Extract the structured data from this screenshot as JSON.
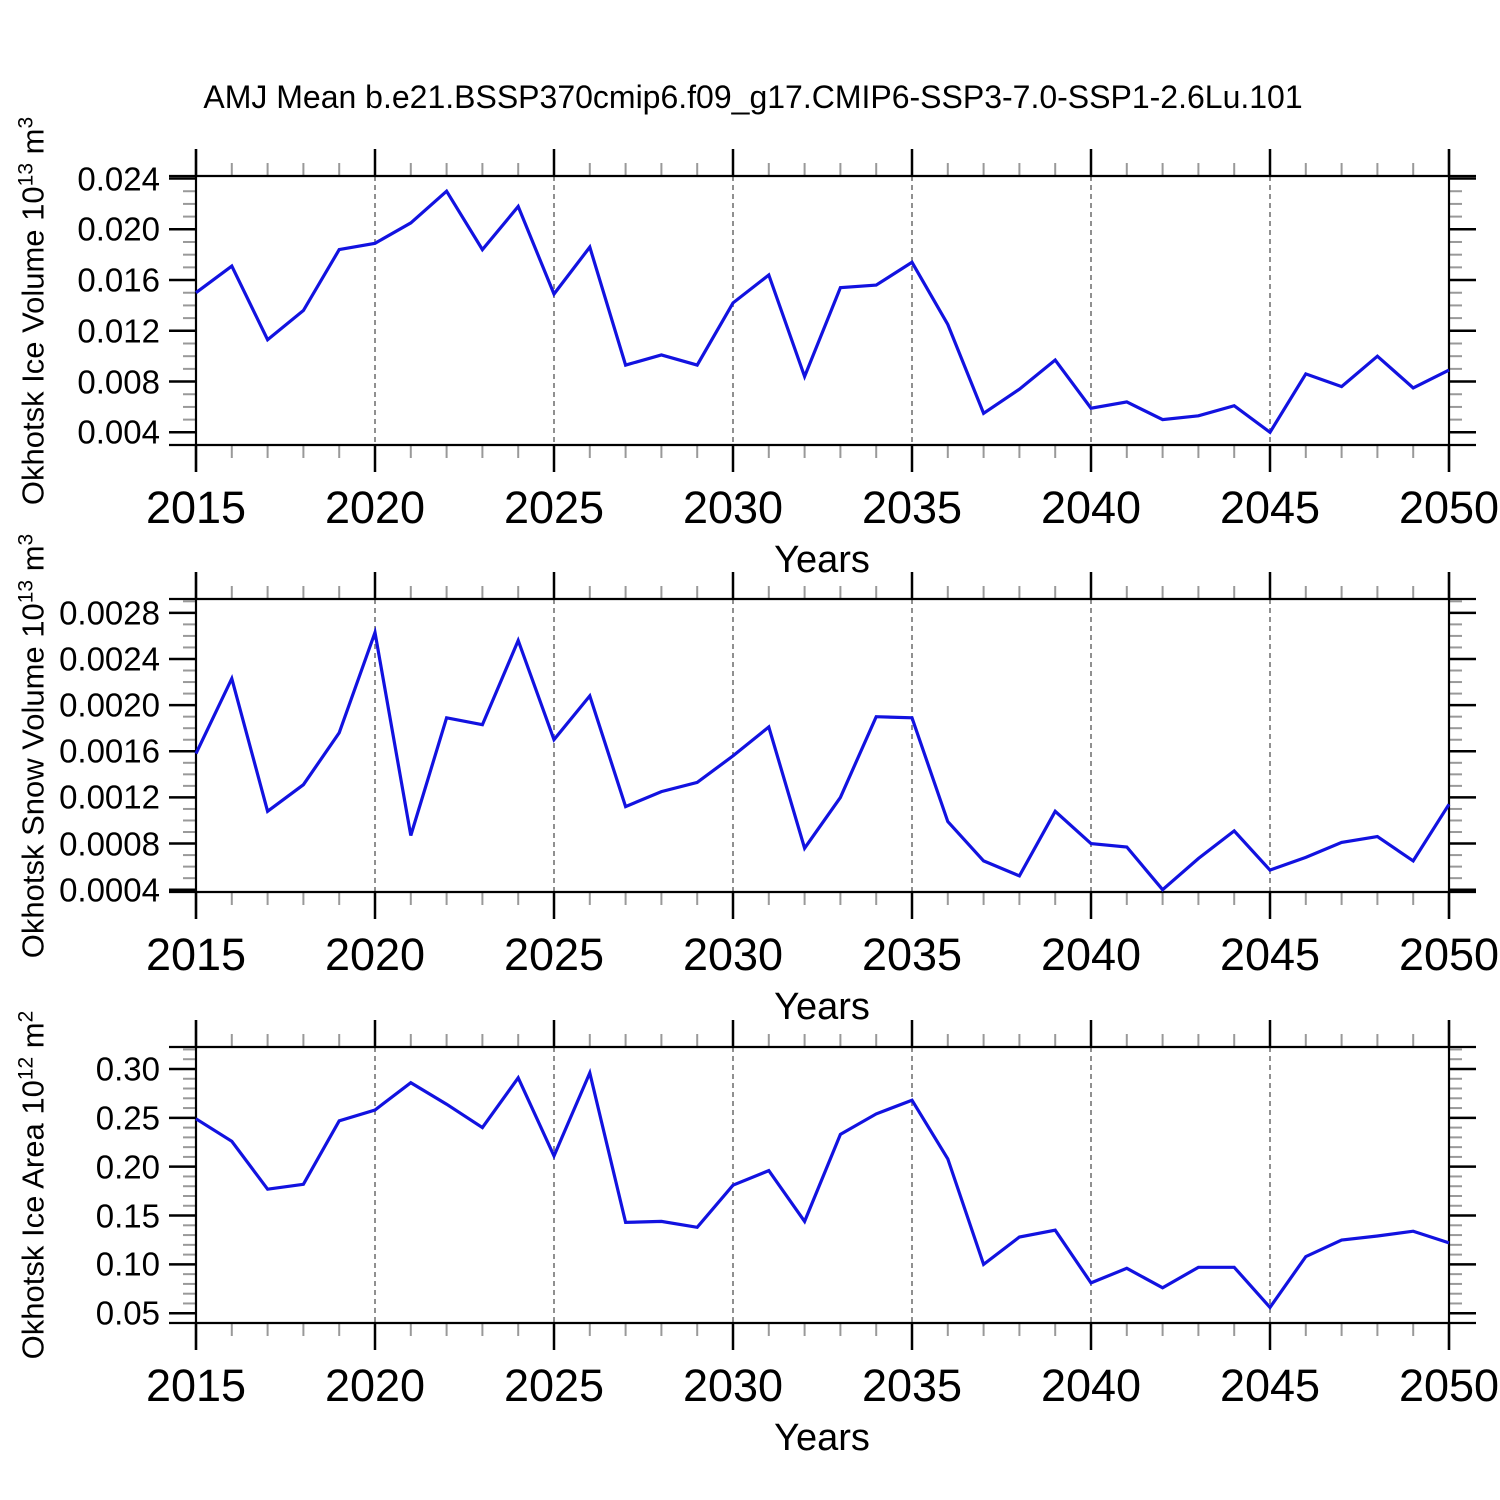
{
  "title": "AMJ Mean b.e21.BSSP370cmip6.f09_g17.CMIP6-SSP3-7.0-SSP1-2.6Lu.101",
  "colors": {
    "line": "#1212e0",
    "axis": "#000000",
    "minor_tick": "#999999",
    "grid": "#848484",
    "text": "#000000",
    "background": "#ffffff"
  },
  "chart_data": [
    {
      "type": "line",
      "name": "okhotsk-ice-volume",
      "ylabel": "Okhotsk Ice Volume 10^13 m^3",
      "ylabel_parts": [
        {
          "text": "Okhotsk Ice Volume 10"
        },
        {
          "sup": "13"
        },
        {
          "text": " m"
        },
        {
          "sup": "3"
        }
      ],
      "xlabel": "Years",
      "xlim": [
        2015,
        2050
      ],
      "ylim": [
        0.003,
        0.0242
      ],
      "x_major_ticks": [
        2015,
        2020,
        2025,
        2030,
        2035,
        2040,
        2045,
        2050
      ],
      "x_tick_labels": [
        "2015",
        "2020",
        "2025",
        "2030",
        "2035",
        "2040",
        "2045",
        "2050"
      ],
      "x_grid_years": [
        2020,
        2025,
        2030,
        2035,
        2040,
        2045
      ],
      "y_minor_step": 0.001,
      "yticks": [
        {
          "value": 0.004,
          "label": "0.004"
        },
        {
          "value": 0.008,
          "label": "0.008"
        },
        {
          "value": 0.012,
          "label": "0.012"
        },
        {
          "value": 0.016,
          "label": "0.016"
        },
        {
          "value": 0.02,
          "label": "0.020"
        },
        {
          "value": 0.024,
          "label": "0.024"
        }
      ],
      "x": [
        2015,
        2016,
        2017,
        2018,
        2019,
        2020,
        2021,
        2022,
        2023,
        2024,
        2025,
        2026,
        2027,
        2028,
        2029,
        2030,
        2031,
        2032,
        2033,
        2034,
        2035,
        2036,
        2037,
        2038,
        2039,
        2040,
        2041,
        2042,
        2043,
        2044,
        2045,
        2046,
        2047,
        2048,
        2049,
        2050
      ],
      "values": [
        0.015,
        0.0171,
        0.0113,
        0.0136,
        0.0184,
        0.0189,
        0.0205,
        0.023,
        0.0184,
        0.0218,
        0.0149,
        0.0186,
        0.0093,
        0.0101,
        0.0093,
        0.0142,
        0.0164,
        0.0084,
        0.0154,
        0.0156,
        0.0174,
        0.0125,
        0.0055,
        0.0074,
        0.0097,
        0.0059,
        0.0064,
        0.005,
        0.0053,
        0.0061,
        0.004,
        0.0086,
        0.0076,
        0.01,
        0.0075,
        0.0089
      ]
    },
    {
      "type": "line",
      "name": "okhotsk-snow-volume",
      "ylabel": "Okhotsk Snow Volume 10^13 m^3",
      "ylabel_parts": [
        {
          "text": "Okhotsk Snow Volume 10"
        },
        {
          "sup": "13"
        },
        {
          "text": " m"
        },
        {
          "sup": "3"
        }
      ],
      "xlabel": "Years",
      "xlim": [
        2015,
        2050
      ],
      "ylim": [
        0.00038,
        0.00292
      ],
      "x_major_ticks": [
        2015,
        2020,
        2025,
        2030,
        2035,
        2040,
        2045,
        2050
      ],
      "x_tick_labels": [
        "2015",
        "2020",
        "2025",
        "2030",
        "2035",
        "2040",
        "2045",
        "2050"
      ],
      "x_grid_years": [
        2020,
        2025,
        2030,
        2035,
        2040,
        2045
      ],
      "y_minor_step": 0.0001,
      "yticks": [
        {
          "value": 0.0004,
          "label": "0.0004"
        },
        {
          "value": 0.0008,
          "label": "0.0008"
        },
        {
          "value": 0.0012,
          "label": "0.0012"
        },
        {
          "value": 0.0016,
          "label": "0.0016"
        },
        {
          "value": 0.002,
          "label": "0.0020"
        },
        {
          "value": 0.0024,
          "label": "0.0024"
        },
        {
          "value": 0.0028,
          "label": "0.0028"
        }
      ],
      "x": [
        2015,
        2016,
        2017,
        2018,
        2019,
        2020,
        2021,
        2022,
        2023,
        2024,
        2025,
        2026,
        2027,
        2028,
        2029,
        2030,
        2031,
        2032,
        2033,
        2034,
        2035,
        2036,
        2037,
        2038,
        2039,
        2040,
        2041,
        2042,
        2043,
        2044,
        2045,
        2046,
        2047,
        2048,
        2049,
        2050
      ],
      "values": [
        0.00158,
        0.00223,
        0.00108,
        0.00131,
        0.00176,
        0.00263,
        0.00087,
        0.00189,
        0.00183,
        0.00256,
        0.0017,
        0.00208,
        0.00112,
        0.00125,
        0.00133,
        0.00156,
        0.00181,
        0.00076,
        0.0012,
        0.0019,
        0.00189,
        0.00099,
        0.00065,
        0.00052,
        0.00108,
        0.0008,
        0.00077,
        0.0004,
        0.00067,
        0.00091,
        0.00057,
        0.00068,
        0.00081,
        0.00086,
        0.00065,
        0.00114
      ]
    },
    {
      "type": "line",
      "name": "okhotsk-ice-area",
      "ylabel": "Okhotsk Ice Area 10^12 m^2",
      "ylabel_parts": [
        {
          "text": "Okhotsk Ice Area 10"
        },
        {
          "sup": "12"
        },
        {
          "text": " m"
        },
        {
          "sup": "2"
        }
      ],
      "xlabel": "Years",
      "xlim": [
        2015,
        2050
      ],
      "ylim": [
        0.04,
        0.3225
      ],
      "x_major_ticks": [
        2015,
        2020,
        2025,
        2030,
        2035,
        2040,
        2045,
        2050
      ],
      "x_tick_labels": [
        "2015",
        "2020",
        "2025",
        "2030",
        "2035",
        "2040",
        "2045",
        "2050"
      ],
      "x_grid_years": [
        2020,
        2025,
        2030,
        2035,
        2040,
        2045
      ],
      "y_minor_step": 0.01,
      "yticks": [
        {
          "value": 0.05,
          "label": "0.05"
        },
        {
          "value": 0.1,
          "label": "0.10"
        },
        {
          "value": 0.15,
          "label": "0.15"
        },
        {
          "value": 0.2,
          "label": "0.20"
        },
        {
          "value": 0.25,
          "label": "0.25"
        },
        {
          "value": 0.3,
          "label": "0.30"
        }
      ],
      "x": [
        2015,
        2016,
        2017,
        2018,
        2019,
        2020,
        2021,
        2022,
        2023,
        2024,
        2025,
        2026,
        2027,
        2028,
        2029,
        2030,
        2031,
        2032,
        2033,
        2034,
        2035,
        2036,
        2037,
        2038,
        2039,
        2040,
        2041,
        2042,
        2043,
        2044,
        2045,
        2046,
        2047,
        2048,
        2049,
        2050
      ],
      "values": [
        0.249,
        0.226,
        0.177,
        0.182,
        0.247,
        0.258,
        0.286,
        0.264,
        0.24,
        0.291,
        0.211,
        0.296,
        0.143,
        0.144,
        0.138,
        0.181,
        0.196,
        0.144,
        0.233,
        0.254,
        0.268,
        0.208,
        0.1,
        0.128,
        0.135,
        0.081,
        0.096,
        0.076,
        0.097,
        0.097,
        0.056,
        0.108,
        0.125,
        0.129,
        0.134,
        0.122
      ]
    }
  ]
}
